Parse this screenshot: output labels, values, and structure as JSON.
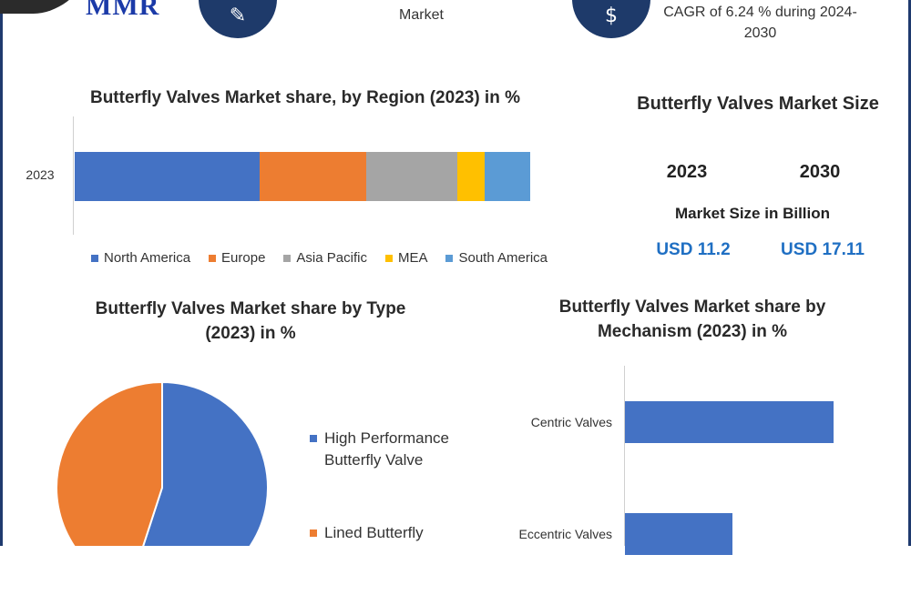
{
  "header": {
    "logo_text": "MMR",
    "market_label": "Market",
    "cagr_text": "CAGR of 6.24 % during 2024-2030",
    "icons": [
      "pen-icon",
      "growth-icon"
    ]
  },
  "colors": {
    "frame": "#1f3a6e",
    "accent_value": "#1f6fc3"
  },
  "market_size": {
    "title": "Butterfly Valves Market Size",
    "years": [
      "2023",
      "2030"
    ],
    "unit_label": "Market Size in Billion",
    "values": [
      "USD 11.2",
      "USD 17.11"
    ]
  },
  "chart_data": [
    {
      "type": "bar",
      "orientation": "horizontal",
      "stacked": true,
      "title": "Butterfly Valves Market share, by Region (2023) in %",
      "categories": [
        "2023"
      ],
      "series": [
        {
          "name": "North America",
          "values": [
            40.5
          ],
          "color": "#4472c4"
        },
        {
          "name": "Europe",
          "values": [
            23.5
          ],
          "color": "#ed7d31"
        },
        {
          "name": "Asia Pacific",
          "values": [
            20
          ],
          "color": "#a5a5a5"
        },
        {
          "name": "MEA",
          "values": [
            6
          ],
          "color": "#ffc000"
        },
        {
          "name": "South America",
          "values": [
            10
          ],
          "color": "#5b9bd5"
        }
      ],
      "legend": "bottom"
    },
    {
      "type": "pie",
      "title": "Butterfly Valves Market share by Type (2023) in %",
      "labels": [
        "High Performance Butterfly Valve",
        "Lined Butterfly"
      ],
      "values": [
        55,
        45
      ],
      "colors": [
        "#4472c4",
        "#ed7d31"
      ],
      "legend": "right"
    },
    {
      "type": "bar",
      "orientation": "horizontal",
      "title": "Butterfly Valves Market  share by Mechanism (2023) in %",
      "categories": [
        "Centric Valves",
        "Eccentric Valves"
      ],
      "values": [
        62,
        32
      ],
      "xlim": [
        0,
        70
      ],
      "color": "#4472c4"
    }
  ]
}
